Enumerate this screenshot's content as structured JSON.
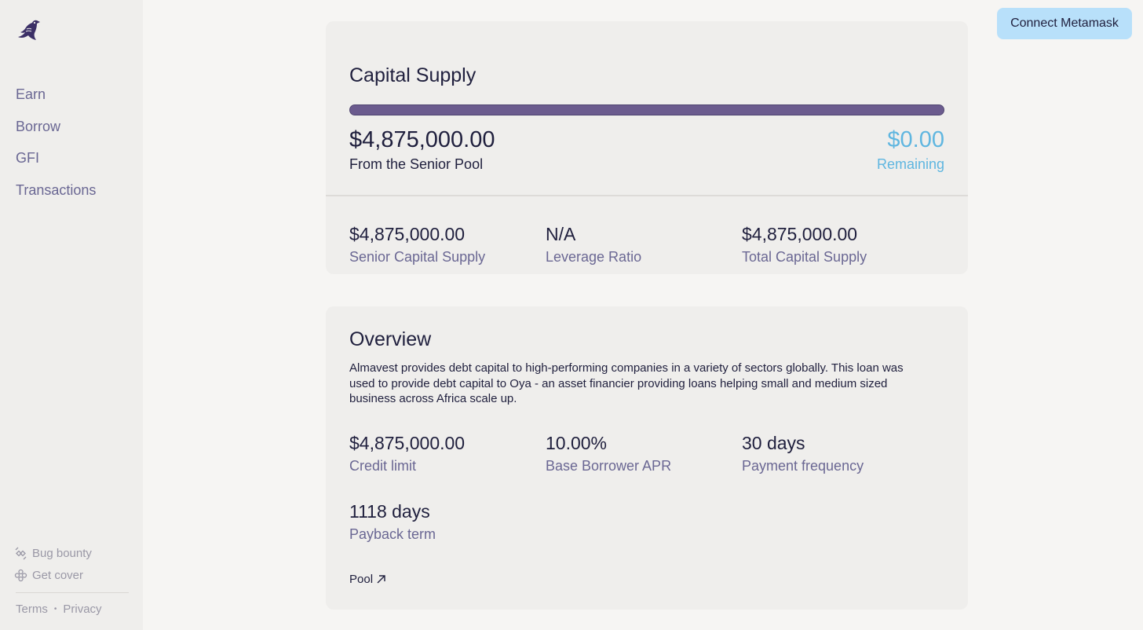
{
  "sidebar": {
    "nav": [
      {
        "label": "Earn"
      },
      {
        "label": "Borrow"
      },
      {
        "label": "GFI"
      },
      {
        "label": "Transactions"
      }
    ],
    "footer_links": [
      {
        "label": "Bug bounty",
        "icon": "bug-bounty-icon"
      },
      {
        "label": "Get cover",
        "icon": "get-cover-icon"
      }
    ],
    "legal": {
      "terms": "Terms",
      "separator": "•",
      "privacy": "Privacy"
    }
  },
  "header": {
    "connect_label": "Connect Metamask"
  },
  "capital_supply": {
    "title": "Capital Supply",
    "progress_fraction": 1.0,
    "supplied_value": "$4,875,000.00",
    "supplied_label": "From the Senior Pool",
    "remaining_value": "$0.00",
    "remaining_label": "Remaining",
    "stats": [
      {
        "value": "$4,875,000.00",
        "label": "Senior Capital Supply"
      },
      {
        "value": "N/A",
        "label": "Leverage Ratio"
      },
      {
        "value": "$4,875,000.00",
        "label": "Total Capital Supply"
      }
    ]
  },
  "overview": {
    "title": "Overview",
    "description": "Almavest provides debt capital to high-performing companies in a variety of sectors globally. This loan was used to provide debt capital to Oya - an asset financier providing loans helping small and medium sized business across Africa scale up.",
    "stats": [
      {
        "value": "$4,875,000.00",
        "label": "Credit limit"
      },
      {
        "value": "10.00%",
        "label": "Base Borrower APR"
      },
      {
        "value": "30 days",
        "label": "Payment frequency"
      },
      {
        "value": "1118 days",
        "label": "Payback term"
      }
    ],
    "pool_link": "Pool"
  },
  "colors": {
    "accent_blue": "#5fb6e0",
    "progress_purple": "#6b5b8e",
    "button_bg": "#b8e0fa",
    "label_purple": "#6a6793"
  }
}
